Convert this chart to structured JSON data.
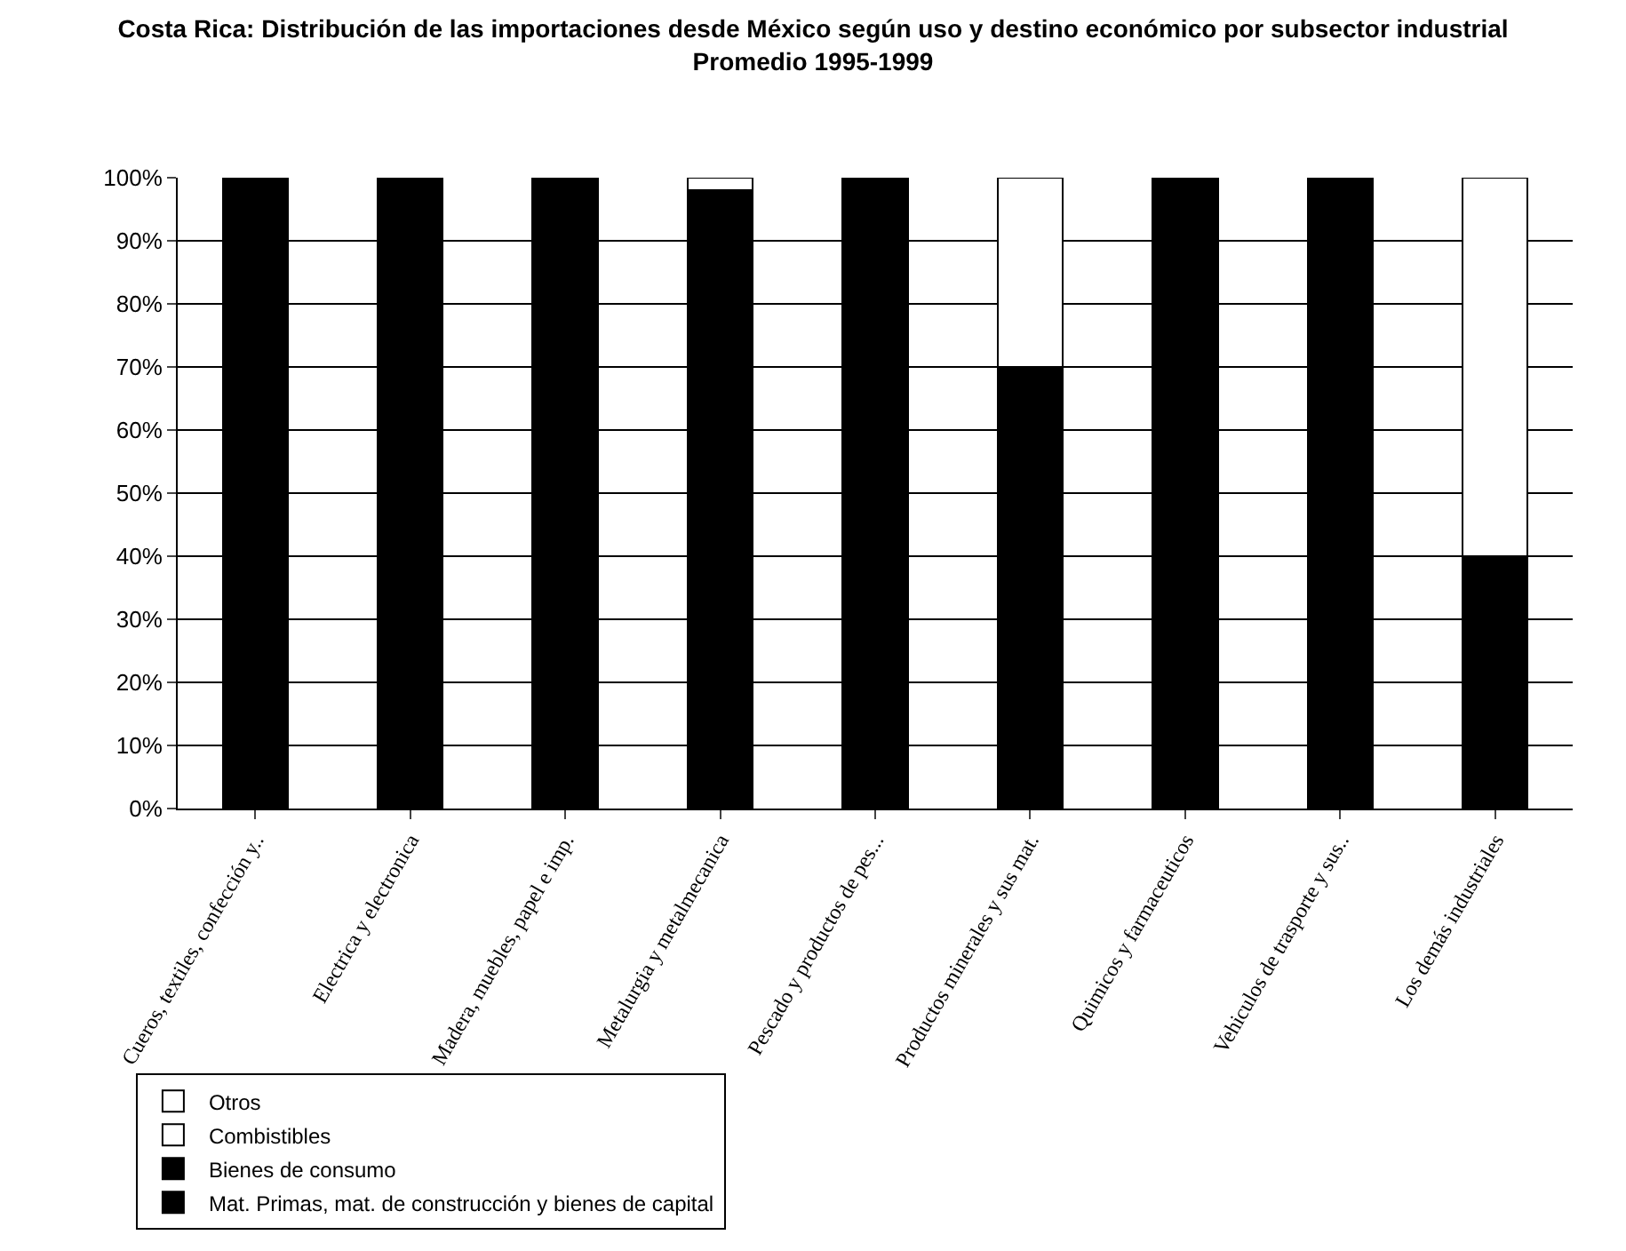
{
  "chart_data": {
    "type": "bar",
    "stacked": true,
    "title": "Costa Rica: Distribución de las importaciones desde México según uso y destino económico por subsector industrial\nPromedio 1995-1999",
    "categories": [
      "Cueros, textiles, confección y..",
      "Electrica y electronica",
      "Madera, muebles, papel e imp.",
      "Metalurgia y metalmecanica",
      "Pescado y productos de pes...",
      "Productos minerales y sus mat.",
      "Quimicos y farmaceuticos",
      "Vehiculos de trasporte y sus..",
      "Los demás industriales"
    ],
    "series": [
      {
        "name": "Mat. Primas, mat. de construcción y bienes de capital",
        "color": "#000000",
        "values": [
          100,
          100,
          100,
          98,
          100,
          70,
          100,
          100,
          40
        ]
      },
      {
        "name": "Bienes de consumo",
        "color": "#000000",
        "values": [
          0,
          0,
          0,
          0,
          0,
          0,
          0,
          0,
          0
        ]
      },
      {
        "name": "Combistibles",
        "color": "#ffffff",
        "values": [
          0,
          0,
          0,
          0,
          0,
          0,
          0,
          0,
          0
        ]
      },
      {
        "name": "Otros",
        "color": "#ffffff",
        "values": [
          0,
          0,
          0,
          2,
          0,
          30,
          0,
          0,
          60
        ]
      }
    ],
    "ylim": [
      0,
      100
    ],
    "yticks": [
      {
        "value": 0,
        "label": "0%"
      },
      {
        "value": 10,
        "label": "10%"
      },
      {
        "value": 20,
        "label": "20%"
      },
      {
        "value": 30,
        "label": "30%"
      },
      {
        "value": 40,
        "label": "40%"
      },
      {
        "value": 50,
        "label": "50%"
      },
      {
        "value": 60,
        "label": "60%"
      },
      {
        "value": 70,
        "label": "70%"
      },
      {
        "value": 80,
        "label": "80%"
      },
      {
        "value": 90,
        "label": "90%"
      },
      {
        "value": 100,
        "label": "100%"
      }
    ],
    "grid": "y",
    "legend": "bottom left"
  }
}
